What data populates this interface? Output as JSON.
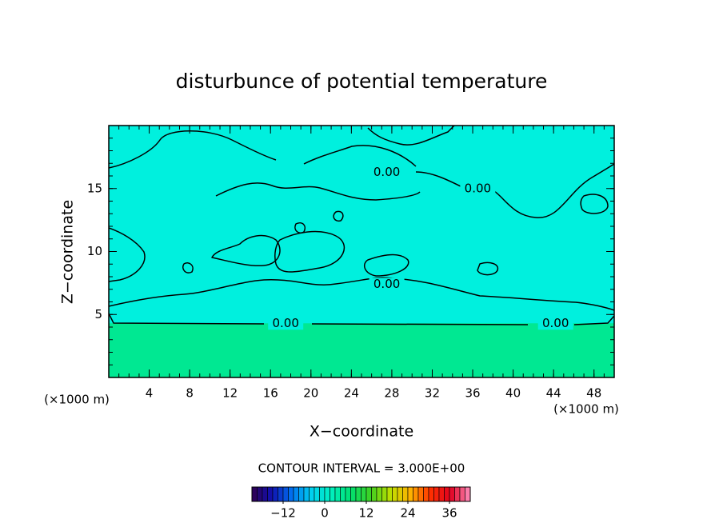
{
  "chart_data": {
    "type": "contour",
    "title": "disturbunce of potential temperature",
    "x_label": "X−coordinate",
    "y_label": "Z−coordinate",
    "x_unit_left": "(×1000 m)",
    "x_unit_right": "(×1000 m)",
    "xlim": [
      0,
      50
    ],
    "ylim": [
      0,
      20
    ],
    "xticks": [
      4,
      8,
      12,
      16,
      20,
      24,
      28,
      32,
      36,
      40,
      44,
      48
    ],
    "yticks": [
      5,
      10,
      15
    ],
    "contour_interval_label": "CONTOUR INTERVAL = 3.000E+00",
    "contours": [
      {
        "level": {
          "value": 0,
          "label": "0.00"
        },
        "label_positions": [
          [
            17.5,
            4.3
          ],
          [
            27.5,
            16.3
          ],
          [
            36.5,
            15.0
          ],
          [
            27.5,
            7.4
          ],
          [
            44.2,
            4.3
          ]
        ]
      }
    ],
    "field_colors": {
      "upper": "#00f0de",
      "lower": "#00e892"
    },
    "colorbar": {
      "clim": [
        -21,
        42
      ],
      "ticks": [
        {
          "value": -12,
          "label": "−12"
        },
        0,
        12,
        24,
        36
      ],
      "colormap": [
        "#300050",
        "#1010b0",
        "#0070f0",
        "#00d0f0",
        "#00f0c0",
        "#00e070",
        "#40d020",
        "#c0e000",
        "#ffb000",
        "#ff3000",
        "#e00020",
        "#ff90c0"
      ]
    }
  }
}
